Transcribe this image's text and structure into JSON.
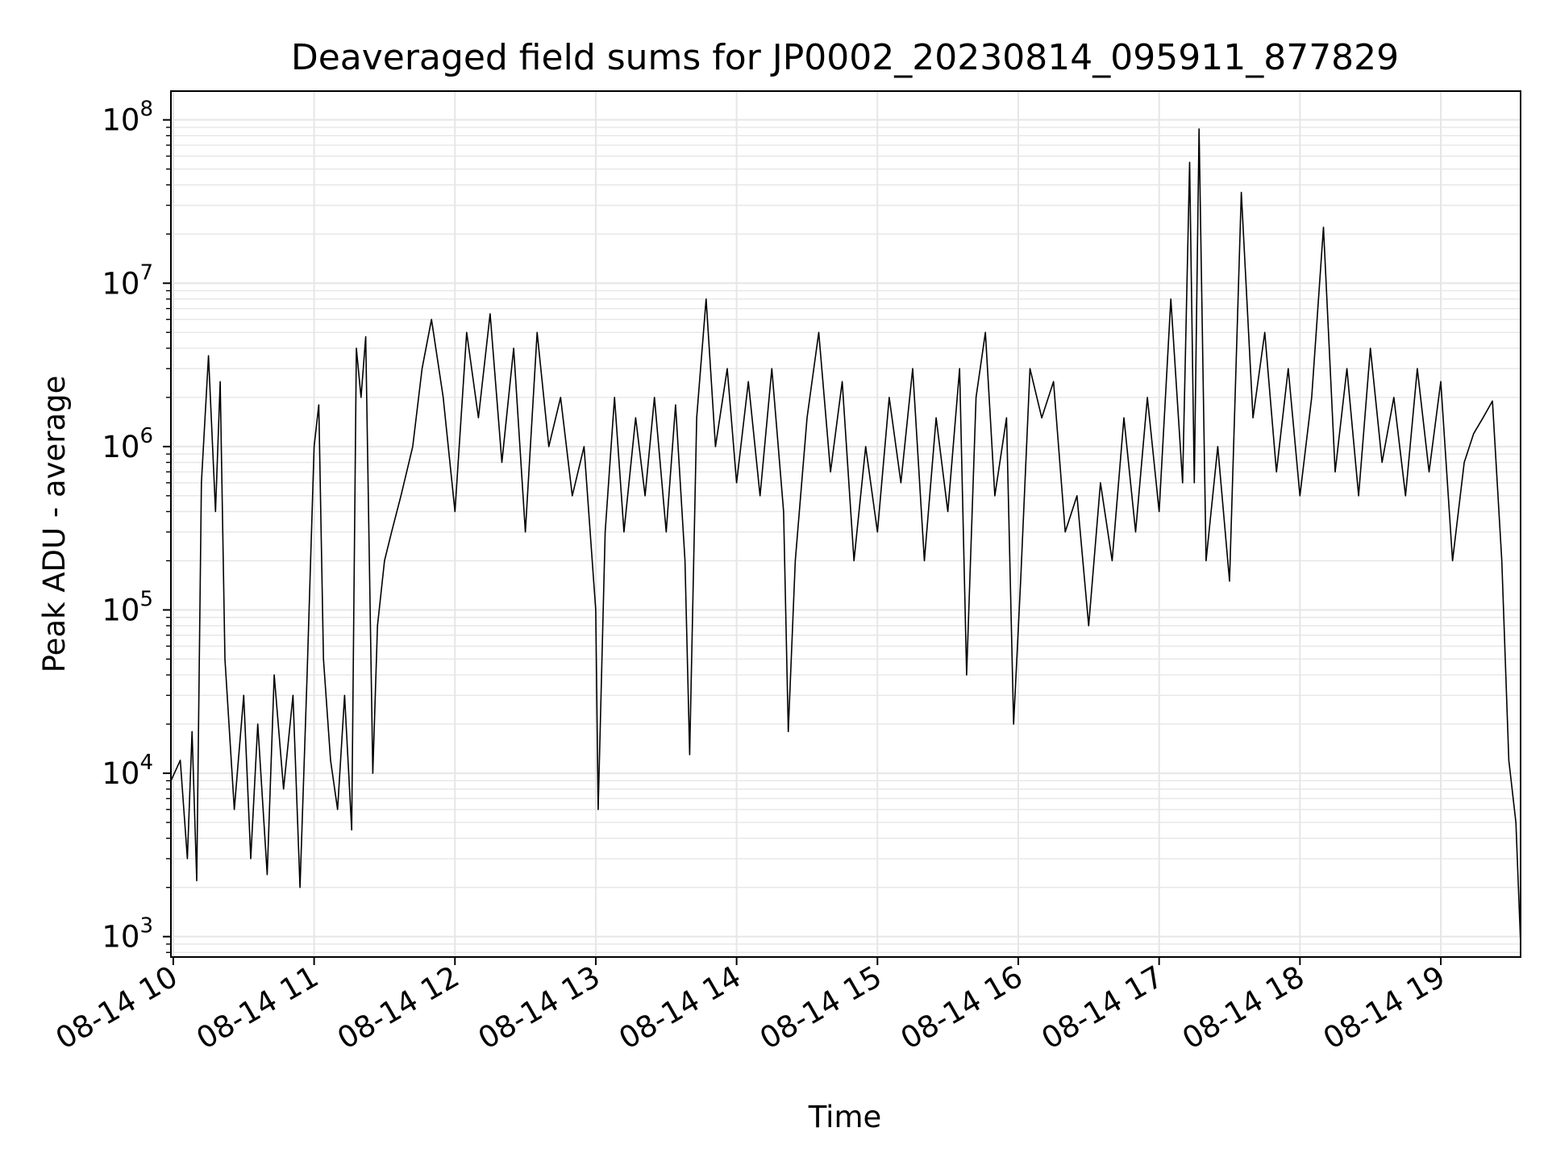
{
  "chart_data": {
    "type": "line",
    "title": "Deaveraged field sums for JP0002_20230814_095911_877829",
    "xlabel": "Time",
    "ylabel": "Peak ADU - average",
    "yscale": "log",
    "ylim": [
      750,
      150000000
    ],
    "xlim": [
      "08-14 09:59",
      "08-14 19:34"
    ],
    "grid": true,
    "line_color": "#000000",
    "grid_color": "#e6e6e6",
    "x_ticks": [
      "08-14 10",
      "08-14 11",
      "08-14 12",
      "08-14 13",
      "08-14 14",
      "08-14 15",
      "08-14 16",
      "08-14 17",
      "08-14 18",
      "08-14 19"
    ],
    "y_ticks": [
      {
        "base": "10",
        "exp": "3"
      },
      {
        "base": "10",
        "exp": "4"
      },
      {
        "base": "10",
        "exp": "5"
      },
      {
        "base": "10",
        "exp": "6"
      },
      {
        "base": "10",
        "exp": "7"
      },
      {
        "base": "10",
        "exp": "8"
      }
    ],
    "series": [
      {
        "points": [
          [
            "08-14 09:59",
            9000
          ],
          [
            "08-14 10:03",
            12000
          ],
          [
            "08-14 10:06",
            3000
          ],
          [
            "08-14 10:08",
            18000
          ],
          [
            "08-14 10:10",
            2200
          ],
          [
            "08-14 10:12",
            600000
          ],
          [
            "08-14 10:15",
            3600000
          ],
          [
            "08-14 10:18",
            400000
          ],
          [
            "08-14 10:20",
            2500000
          ],
          [
            "08-14 10:22",
            50000
          ],
          [
            "08-14 10:26",
            6000
          ],
          [
            "08-14 10:30",
            30000
          ],
          [
            "08-14 10:33",
            3000
          ],
          [
            "08-14 10:36",
            20000
          ],
          [
            "08-14 10:40",
            2400
          ],
          [
            "08-14 10:43",
            40000
          ],
          [
            "08-14 10:47",
            8000
          ],
          [
            "08-14 10:51",
            30000
          ],
          [
            "08-14 10:54",
            2000
          ],
          [
            "08-14 10:57",
            40000
          ],
          [
            "08-14 11:00",
            1000000
          ],
          [
            "08-14 11:02",
            1800000
          ],
          [
            "08-14 11:04",
            50000
          ],
          [
            "08-14 11:07",
            12000
          ],
          [
            "08-14 11:10",
            6000
          ],
          [
            "08-14 11:13",
            30000
          ],
          [
            "08-14 11:16",
            4500
          ],
          [
            "08-14 11:18",
            4000000
          ],
          [
            "08-14 11:20",
            2000000
          ],
          [
            "08-14 11:22",
            4700000
          ],
          [
            "08-14 11:25",
            10000
          ],
          [
            "08-14 11:27",
            80000
          ],
          [
            "08-14 11:30",
            200000
          ],
          [
            "08-14 11:33",
            300000
          ],
          [
            "08-14 11:37",
            500000
          ],
          [
            "08-14 11:42",
            1000000
          ],
          [
            "08-14 11:46",
            3000000
          ],
          [
            "08-14 11:50",
            6000000
          ],
          [
            "08-14 11:55",
            2000000
          ],
          [
            "08-14 12:00",
            400000
          ],
          [
            "08-14 12:05",
            5000000
          ],
          [
            "08-14 12:10",
            1500000
          ],
          [
            "08-14 12:15",
            6500000
          ],
          [
            "08-14 12:20",
            800000
          ],
          [
            "08-14 12:25",
            4000000
          ],
          [
            "08-14 12:30",
            300000
          ],
          [
            "08-14 12:35",
            5000000
          ],
          [
            "08-14 12:40",
            1000000
          ],
          [
            "08-14 12:45",
            2000000
          ],
          [
            "08-14 12:50",
            500000
          ],
          [
            "08-14 12:55",
            1000000
          ],
          [
            "08-14 13:00",
            100000
          ],
          [
            "08-14 13:01",
            6000
          ],
          [
            "08-14 13:04",
            300000
          ],
          [
            "08-14 13:08",
            2000000
          ],
          [
            "08-14 13:12",
            300000
          ],
          [
            "08-14 13:17",
            1500000
          ],
          [
            "08-14 13:21",
            500000
          ],
          [
            "08-14 13:25",
            2000000
          ],
          [
            "08-14 13:30",
            300000
          ],
          [
            "08-14 13:34",
            1800000
          ],
          [
            "08-14 13:38",
            200000
          ],
          [
            "08-14 13:40",
            13000
          ],
          [
            "08-14 13:43",
            1500000
          ],
          [
            "08-14 13:47",
            8000000
          ],
          [
            "08-14 13:51",
            1000000
          ],
          [
            "08-14 13:56",
            3000000
          ],
          [
            "08-14 14:00",
            600000
          ],
          [
            "08-14 14:05",
            2500000
          ],
          [
            "08-14 14:10",
            500000
          ],
          [
            "08-14 14:15",
            3000000
          ],
          [
            "08-14 14:20",
            400000
          ],
          [
            "08-14 14:22",
            18000
          ],
          [
            "08-14 14:25",
            200000
          ],
          [
            "08-14 14:30",
            1500000
          ],
          [
            "08-14 14:35",
            5000000
          ],
          [
            "08-14 14:40",
            700000
          ],
          [
            "08-14 14:45",
            2500000
          ],
          [
            "08-14 14:50",
            200000
          ],
          [
            "08-14 14:55",
            1000000
          ],
          [
            "08-14 15:00",
            300000
          ],
          [
            "08-14 15:05",
            2000000
          ],
          [
            "08-14 15:10",
            600000
          ],
          [
            "08-14 15:15",
            3000000
          ],
          [
            "08-14 15:20",
            200000
          ],
          [
            "08-14 15:25",
            1500000
          ],
          [
            "08-14 15:30",
            400000
          ],
          [
            "08-14 15:35",
            3000000
          ],
          [
            "08-14 15:38",
            40000
          ],
          [
            "08-14 15:42",
            2000000
          ],
          [
            "08-14 15:46",
            5000000
          ],
          [
            "08-14 15:50",
            500000
          ],
          [
            "08-14 15:55",
            1500000
          ],
          [
            "08-14 15:58",
            20000
          ],
          [
            "08-14 16:01",
            150000
          ],
          [
            "08-14 16:05",
            3000000
          ],
          [
            "08-14 16:10",
            1500000
          ],
          [
            "08-14 16:15",
            2500000
          ],
          [
            "08-14 16:20",
            300000
          ],
          [
            "08-14 16:25",
            500000
          ],
          [
            "08-14 16:30",
            80000
          ],
          [
            "08-14 16:35",
            600000
          ],
          [
            "08-14 16:40",
            200000
          ],
          [
            "08-14 16:45",
            1500000
          ],
          [
            "08-14 16:50",
            300000
          ],
          [
            "08-14 16:55",
            2000000
          ],
          [
            "08-14 17:00",
            400000
          ],
          [
            "08-14 17:05",
            8000000
          ],
          [
            "08-14 17:10",
            600000
          ],
          [
            "08-14 17:13",
            55000000
          ],
          [
            "08-14 17:15",
            600000
          ],
          [
            "08-14 17:17",
            88000000
          ],
          [
            "08-14 17:20",
            200000
          ],
          [
            "08-14 17:25",
            1000000
          ],
          [
            "08-14 17:30",
            150000
          ],
          [
            "08-14 17:35",
            36000000
          ],
          [
            "08-14 17:40",
            1500000
          ],
          [
            "08-14 17:45",
            5000000
          ],
          [
            "08-14 17:50",
            700000
          ],
          [
            "08-14 17:55",
            3000000
          ],
          [
            "08-14 18:00",
            500000
          ],
          [
            "08-14 18:05",
            2000000
          ],
          [
            "08-14 18:10",
            22000000
          ],
          [
            "08-14 18:15",
            700000
          ],
          [
            "08-14 18:20",
            3000000
          ],
          [
            "08-14 18:25",
            500000
          ],
          [
            "08-14 18:30",
            4000000
          ],
          [
            "08-14 18:35",
            800000
          ],
          [
            "08-14 18:40",
            2000000
          ],
          [
            "08-14 18:45",
            500000
          ],
          [
            "08-14 18:50",
            3000000
          ],
          [
            "08-14 18:55",
            700000
          ],
          [
            "08-14 19:00",
            2500000
          ],
          [
            "08-14 19:05",
            200000
          ],
          [
            "08-14 19:10",
            800000
          ],
          [
            "08-14 19:14",
            1200000
          ],
          [
            "08-14 19:18",
            1500000
          ],
          [
            "08-14 19:22",
            1900000
          ],
          [
            "08-14 19:26",
            200000
          ],
          [
            "08-14 19:29",
            12000
          ],
          [
            "08-14 19:32",
            5000
          ],
          [
            "08-14 19:34",
            900
          ]
        ]
      }
    ]
  }
}
